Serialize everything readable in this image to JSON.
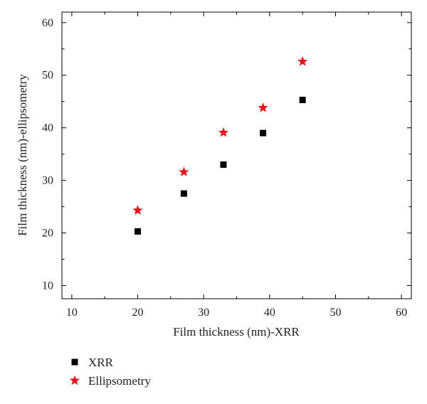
{
  "chart_data": {
    "type": "scatter",
    "xlabel": "Film thickness (nm)-XRR",
    "ylabel": "Film thickness (nm)-ellipsometry",
    "xlim": [
      8.5,
      61.5
    ],
    "ylim": [
      7.5,
      62
    ],
    "xticks": [
      "10",
      "20",
      "30",
      "40",
      "50",
      "60"
    ],
    "yticks": [
      "10",
      "20",
      "30",
      "40",
      "50",
      "60"
    ],
    "grid": false,
    "legend_position": "bottom-left, below plot",
    "series": [
      {
        "name": "XRR",
        "marker": "square",
        "color": "#000000",
        "x": [
          20,
          27,
          33,
          39,
          45
        ],
        "y": [
          20.3,
          27.5,
          33.0,
          39.0,
          45.3
        ]
      },
      {
        "name": "Ellipsometry",
        "marker": "star",
        "color": "#e8141b",
        "x": [
          20,
          27,
          33,
          39,
          45
        ],
        "y": [
          24.3,
          31.6,
          39.1,
          43.8,
          52.6
        ]
      }
    ]
  }
}
